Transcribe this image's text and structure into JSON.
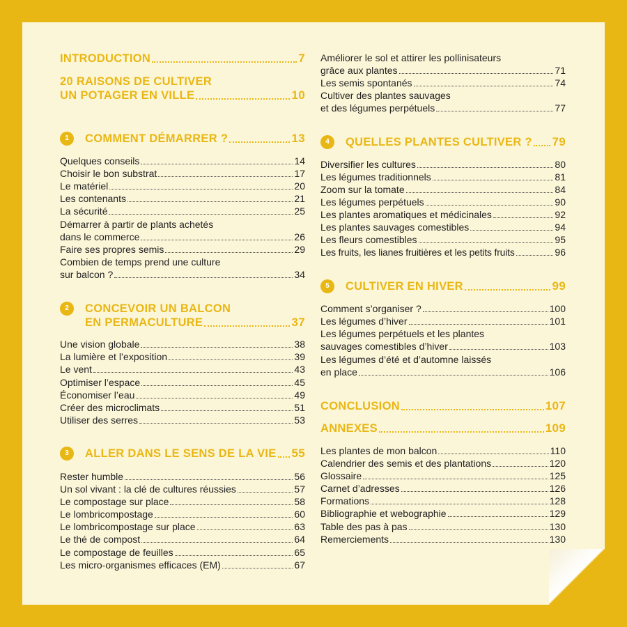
{
  "left": {
    "introduction": {
      "title": "INTRODUCTION",
      "page": "7"
    },
    "raisons": {
      "line1": "20 RAISONS DE CULTIVER",
      "line2": "UN POTAGER EN VILLE",
      "page": "10"
    },
    "chapters": [
      {
        "number": "1",
        "title": "COMMENT DÉMARRER ?",
        "page": "13",
        "items": [
          {
            "title": "Quelques conseils",
            "page": "14"
          },
          {
            "title": "Choisir le bon substrat",
            "page": "17"
          },
          {
            "title": "Le matériel",
            "page": "20"
          },
          {
            "title": "Les contenants",
            "page": "21"
          },
          {
            "title": "La sécurité",
            "page": "25"
          },
          {
            "line1": "Démarrer à partir de plants achetés",
            "title": "dans le commerce",
            "page": "26"
          },
          {
            "title": "Faire ses propres semis",
            "page": "29"
          },
          {
            "line1": "Combien de temps prend une culture",
            "title": "sur balcon ?",
            "page": "34"
          }
        ]
      },
      {
        "number": "2",
        "line1": "CONCEVOIR UN BALCON",
        "title": "EN PERMACULTURE",
        "page": "37",
        "items": [
          {
            "title": "Une vision globale",
            "page": "38"
          },
          {
            "title": "La lumière et l’exposition",
            "page": "39"
          },
          {
            "title": "Le vent",
            "page": "43"
          },
          {
            "title": "Optimiser l’espace",
            "page": "45"
          },
          {
            "title": "Économiser l’eau",
            "page": "49"
          },
          {
            "title": "Créer des microclimats",
            "page": "51"
          },
          {
            "title": "Utiliser des serres",
            "page": "53"
          }
        ]
      },
      {
        "number": "3",
        "title": "ALLER DANS LE SENS DE LA VIE",
        "page": "55",
        "items": [
          {
            "title": "Rester humble",
            "page": "56"
          },
          {
            "title": "Un sol vivant : la clé de cultures réussies",
            "page": "57"
          },
          {
            "title": "Le compostage sur place",
            "page": "58"
          },
          {
            "title": "Le lombricompostage",
            "page": "60"
          },
          {
            "title": "Le lombricompostage sur place",
            "page": "63"
          },
          {
            "title": "Le thé de compost",
            "page": "64"
          },
          {
            "title": "Le compostage de feuilles",
            "page": "65"
          },
          {
            "title": "Les micro-organismes efficaces (EM)",
            "page": "67"
          }
        ]
      }
    ]
  },
  "right": {
    "top_items": [
      {
        "line1": "Améliorer le sol et attirer les pollinisateurs",
        "title": "grâce aux plantes",
        "page": "71"
      },
      {
        "title": "Les semis spontanés",
        "page": "74"
      },
      {
        "line1": "Cultiver des plantes sauvages",
        "title": "et des légumes perpétuels",
        "page": "77"
      }
    ],
    "chapters": [
      {
        "number": "4",
        "title": "QUELLES PLANTES CULTIVER ?",
        "page": "79",
        "items": [
          {
            "title": "Diversifier les cultures",
            "page": "80"
          },
          {
            "title": "Les légumes traditionnels",
            "page": "81"
          },
          {
            "title": "Zoom sur la tomate",
            "page": "84"
          },
          {
            "title": "Les légumes perpétuels",
            "page": "90"
          },
          {
            "title": "Les plantes aromatiques et médicinales",
            "page": "92"
          },
          {
            "title": "Les plantes sauvages comestibles",
            "page": "94"
          },
          {
            "title": "Les fleurs comestibles",
            "page": "95"
          },
          {
            "title": "Les fruits, les lianes fruitières et les petits fruits",
            "page": "96"
          }
        ]
      },
      {
        "number": "5",
        "title": "CULTIVER EN HIVER",
        "page": "99",
        "items": [
          {
            "title": "Comment s’organiser ?",
            "page": "100"
          },
          {
            "title": "Les légumes d’hiver",
            "page": "101"
          },
          {
            "line1": "Les légumes perpétuels et les plantes",
            "title": "sauvages comestibles d’hiver",
            "page": "103"
          },
          {
            "line1": "Les légumes d’été et d’automne laissés",
            "title": "en place",
            "page": "106"
          }
        ]
      }
    ],
    "conclusion": {
      "title": "CONCLUSION",
      "page": "107"
    },
    "annexes": {
      "title": "ANNEXES",
      "page": "109",
      "items": [
        {
          "title": "Les plantes de mon balcon",
          "page": "110"
        },
        {
          "title": "Calendrier des semis et des plantations",
          "page": "120"
        },
        {
          "title": "Glossaire",
          "page": "125"
        },
        {
          "title": "Carnet d’adresses",
          "page": "126"
        },
        {
          "title": "Formations",
          "page": "128"
        },
        {
          "title": "Bibliographie et webographie",
          "page": "129"
        },
        {
          "title": "Table des pas à pas",
          "page": "130"
        },
        {
          "title": "Remerciements",
          "page": "130"
        }
      ]
    }
  }
}
